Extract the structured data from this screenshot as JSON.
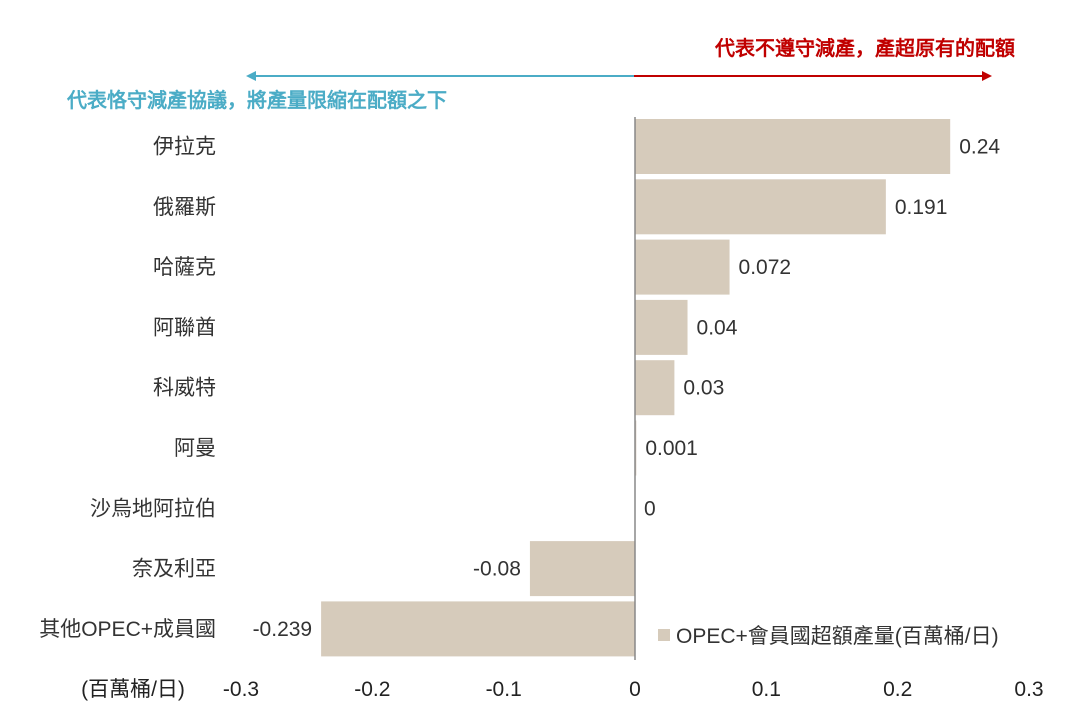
{
  "chart_data": {
    "type": "bar",
    "orientation": "horizontal",
    "categories": [
      "伊拉克",
      "俄羅斯",
      "哈薩克",
      "阿聯酋",
      "科威特",
      "阿曼",
      "沙烏地阿拉伯",
      "奈及利亞",
      "其他OPEC+成員國"
    ],
    "series": [
      {
        "name": "OPEC+會員國超額產量(百萬桶/日)",
        "values": [
          0.24,
          0.191,
          0.072,
          0.04,
          0.03,
          0.001,
          0,
          -0.08,
          -0.239
        ],
        "value_labels": [
          "0.24",
          "0.191",
          "0.072",
          "0.04",
          "0.03",
          "0.001",
          "0",
          "-0.08",
          "-0.239"
        ]
      }
    ],
    "xlim": [
      -0.3,
      0.3
    ],
    "x_ticks": [
      "-0.3",
      "-0.2",
      "-0.1",
      "0",
      "0.1",
      "0.2",
      "0.3"
    ],
    "x_unit_label": "(百萬桶/日)",
    "grid": false,
    "legend_position": "bottom-right",
    "colors": {
      "bar": "#d6cbbb",
      "axis": "#888888",
      "annotation_positive": "#c00000",
      "annotation_negative": "#4bacc6"
    },
    "annotations": {
      "positive": "代表不遵守減產，產超原有的配額",
      "negative": "代表恪守減產協議，將產量限縮在配額之下"
    }
  }
}
